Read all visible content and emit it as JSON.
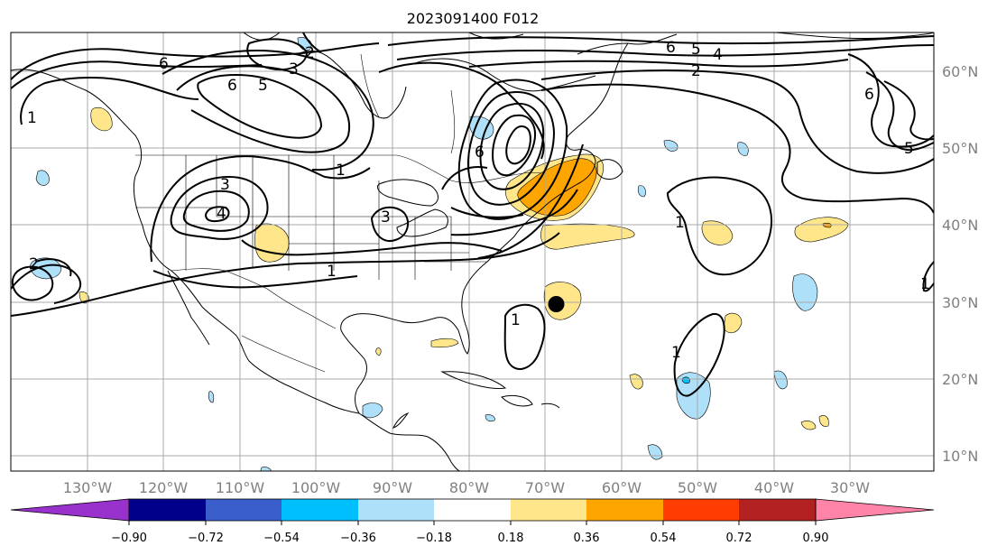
{
  "title": "2023091400 F012",
  "map": {
    "projection": "plate-carree",
    "lon_range": [
      -140,
      -19
    ],
    "lat_range": [
      8,
      65
    ],
    "lon_ticks": [
      "130°W",
      "120°W",
      "110°W",
      "100°W",
      "90°W",
      "80°W",
      "70°W",
      "60°W",
      "50°W",
      "40°W",
      "30°W"
    ],
    "lat_ticks": [
      "10°N",
      "20°N",
      "30°N",
      "40°N",
      "50°N",
      "60°N"
    ],
    "grid": true
  },
  "colorbar": {
    "orientation": "horizontal",
    "extend": "both",
    "colors": [
      "#9932cc",
      "#00008b",
      "#3a5fcd",
      "#00bfff",
      "#afe0fa",
      "#ffffff",
      "#ffe68a",
      "#ffa500",
      "#ff3d00",
      "#b22222",
      "#ff84a8"
    ],
    "tick_labels": [
      "−0.90",
      "−0.72",
      "−0.54",
      "−0.36",
      "−0.18",
      "0.18",
      "0.36",
      "0.54",
      "0.72",
      "0.90"
    ]
  },
  "contour_labels": [
    "6",
    "2",
    "3",
    "6",
    "5",
    "1",
    "3",
    "4",
    "2",
    "1",
    "3",
    "6",
    "6",
    "5",
    "4",
    "2",
    "6",
    "5",
    "1",
    "1",
    "1",
    "1",
    "1"
  ],
  "storm_marker": {
    "lon": -68.5,
    "lat": 29.7,
    "color": "#000000"
  }
}
